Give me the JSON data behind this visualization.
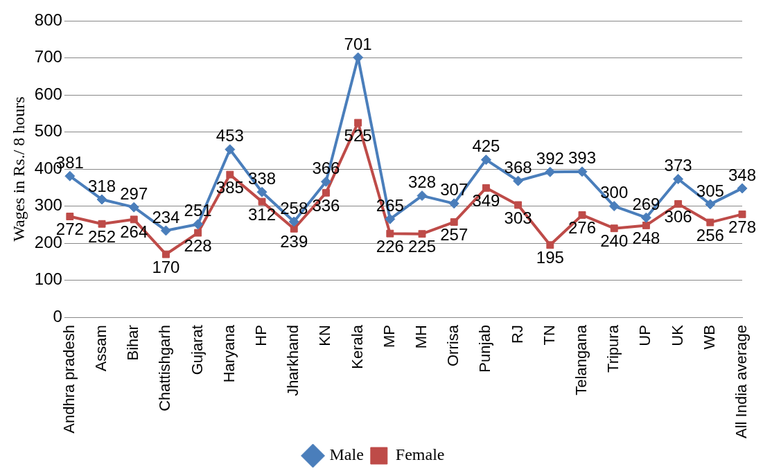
{
  "chart_data": {
    "type": "line",
    "ylabel": "Wages in Rs./ 8 hours",
    "categories": [
      "Andhra pradesh",
      "Assam",
      "Bihar",
      "Chattishgarh",
      "Gujarat",
      "Haryana",
      "HP",
      "Jharkhand",
      "KN",
      "Kerala",
      "MP",
      "MH",
      "Orrisa",
      "Punjab",
      "RJ",
      "TN",
      "Telangana",
      "Tripura",
      "UP",
      "UK",
      "WB",
      "All India average"
    ],
    "series": [
      {
        "name": "Male",
        "color": "#4a7ebb",
        "marker": "diamond",
        "values": [
          381,
          318,
          297,
          234,
          251,
          453,
          338,
          258,
          366,
          701,
          265,
          328,
          307,
          425,
          368,
          392,
          393,
          300,
          269,
          373,
          305,
          348
        ]
      },
      {
        "name": "Female",
        "color": "#be4b48",
        "marker": "square",
        "values": [
          272,
          252,
          264,
          170,
          228,
          385,
          312,
          239,
          336,
          525,
          226,
          225,
          257,
          349,
          303,
          195,
          276,
          240,
          248,
          306,
          256,
          278
        ]
      }
    ],
    "ylim": [
      0,
      800
    ],
    "yticks": [
      0,
      100,
      200,
      300,
      400,
      500,
      600,
      700,
      800
    ],
    "grid": "y",
    "legend": "bottom",
    "data_labels": true
  }
}
